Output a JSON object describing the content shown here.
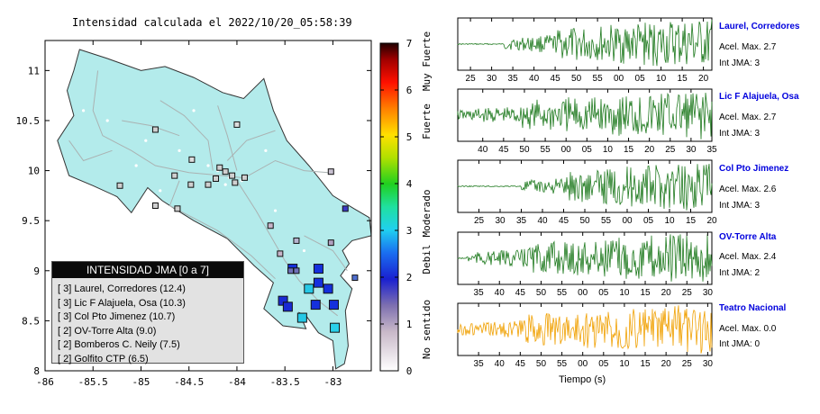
{
  "map": {
    "title": "Intensidad calculada el 2022/10/20_05:58:39",
    "x_ticks": [
      "-86",
      "-85.5",
      "-85",
      "-84.5",
      "-84",
      "-83.5",
      "-83"
    ],
    "y_ticks": [
      "11",
      "10.5",
      "10",
      "9.5",
      "9",
      "8.5",
      "8"
    ],
    "land_color": "#b3ebeb"
  },
  "colorbar": {
    "ticks": [
      "0",
      "1",
      "2",
      "3",
      "4",
      "5",
      "6",
      "7"
    ],
    "categories": [
      "No sentido",
      "Debil",
      "Moderado",
      "Fuerte",
      "Muy Fuerte"
    ]
  },
  "legend": {
    "title": "INTENSIDAD JMA [0 a 7]",
    "items": [
      {
        "jma": "[ 3]",
        "station": "Laurel, Corredores (12.4)"
      },
      {
        "jma": "[ 3]",
        "station": "Lic F Alajuela, Osa (10.3)"
      },
      {
        "jma": "[ 3]",
        "station": "Col Pto Jimenez (10.7)"
      },
      {
        "jma": "[ 2]",
        "station": "OV-Torre Alta (9.0)"
      },
      {
        "jma": "[ 2]",
        "station": "Bomberos C. Neily (7.5)"
      },
      {
        "jma": "[ 2]",
        "station": "Golfito CTP (6.5)"
      }
    ]
  },
  "stations": [
    {
      "lon": -83.42,
      "lat": 9.02,
      "jma": 2.6,
      "color": "#1530dd",
      "size": 10
    },
    {
      "lon": -83.15,
      "lat": 9.02,
      "jma": 2.6,
      "color": "#1530dd",
      "size": 10
    },
    {
      "lon": -83.15,
      "lat": 8.88,
      "jma": 2.6,
      "color": "#1530dd",
      "size": 10
    },
    {
      "lon": -83.25,
      "lat": 8.82,
      "jma": 3.2,
      "color": "#26c8e6",
      "size": 10
    },
    {
      "lon": -83.05,
      "lat": 8.82,
      "jma": 2.6,
      "color": "#1530dd",
      "size": 10
    },
    {
      "lon": -83.52,
      "lat": 8.7,
      "jma": 2.5,
      "color": "#1a2ad4",
      "size": 10
    },
    {
      "lon": -83.47,
      "lat": 8.64,
      "jma": 2.5,
      "color": "#1a2ad4",
      "size": 10
    },
    {
      "lon": -83.18,
      "lat": 8.66,
      "jma": 2.6,
      "color": "#1530dd",
      "size": 10
    },
    {
      "lon": -82.99,
      "lat": 8.66,
      "jma": 2.6,
      "color": "#1530dd",
      "size": 10
    },
    {
      "lon": -83.32,
      "lat": 8.53,
      "jma": 3.2,
      "color": "#26c8e6",
      "size": 10
    },
    {
      "lon": -82.98,
      "lat": 8.43,
      "jma": 3.0,
      "color": "#29d0ea",
      "size": 10
    },
    {
      "lon": -83.44,
      "lat": 9.0,
      "jma": 1.6,
      "color": "#7070b8",
      "size": 6
    },
    {
      "lon": -83.38,
      "lat": 9.0,
      "jma": 1.6,
      "color": "#7070b8",
      "size": 6
    },
    {
      "lon": -82.77,
      "lat": 8.93,
      "jma": 1.8,
      "color": "#4f6fd0",
      "size": 6
    },
    {
      "lon": -82.87,
      "lat": 9.62,
      "jma": 1.8,
      "color": "#3a3ac4",
      "size": 6
    },
    {
      "lon": -83.65,
      "lat": 9.45,
      "jma": 0.9,
      "color": "#c7b4c8",
      "size": 6
    },
    {
      "lon": -83.55,
      "lat": 9.17,
      "jma": 0.9,
      "color": "#c7b4c8",
      "size": 6
    },
    {
      "lon": -83.02,
      "lat": 9.28,
      "jma": 1.1,
      "color": "#b0a0c0",
      "size": 6
    },
    {
      "lon": -83.38,
      "lat": 9.3,
      "jma": 0.9,
      "color": "#b7b4cf",
      "size": 6
    },
    {
      "lon": -84.0,
      "lat": 10.46,
      "jma": 0.2,
      "color": "#dddddd",
      "size": 6
    },
    {
      "lon": -84.47,
      "lat": 10.11,
      "jma": 0.2,
      "color": "#dddddd",
      "size": 6
    },
    {
      "lon": -84.18,
      "lat": 10.03,
      "jma": 0.3,
      "color": "#d0d0d0",
      "size": 6
    },
    {
      "lon": -84.12,
      "lat": 9.99,
      "jma": 0.3,
      "color": "#d0d0d0",
      "size": 6
    },
    {
      "lon": -84.05,
      "lat": 9.95,
      "jma": 0.3,
      "color": "#d0d0d0",
      "size": 6
    },
    {
      "lon": -83.92,
      "lat": 9.93,
      "jma": 0.3,
      "color": "#d0d0d0",
      "size": 6
    },
    {
      "lon": -84.22,
      "lat": 9.92,
      "jma": 0.3,
      "color": "#d0d0d0",
      "size": 6
    },
    {
      "lon": -84.02,
      "lat": 9.88,
      "jma": 0.3,
      "color": "#d0d0d0",
      "size": 6
    },
    {
      "lon": -84.62,
      "lat": 9.62,
      "jma": 0.3,
      "color": "#d0d0d0",
      "size": 6
    },
    {
      "lon": -85.22,
      "lat": 9.85,
      "jma": 0.3,
      "color": "#d0d0d0",
      "size": 6
    },
    {
      "lon": -84.65,
      "lat": 9.95,
      "jma": 0.3,
      "color": "#d0d0d0",
      "size": 6
    },
    {
      "lon": -83.02,
      "lat": 9.99,
      "jma": 0.6,
      "color": "#c8c0d0",
      "size": 6
    },
    {
      "lon": -84.48,
      "lat": 9.86,
      "jma": 0.3,
      "color": "#d0d0d0",
      "size": 6
    },
    {
      "lon": -84.3,
      "lat": 9.86,
      "jma": 0.3,
      "color": "#d0d0d0",
      "size": 6
    },
    {
      "lon": -84.85,
      "lat": 9.65,
      "jma": 0.3,
      "color": "#d0d0d0",
      "size": 6
    },
    {
      "lon": -84.85,
      "lat": 10.41,
      "jma": 0.3,
      "color": "#d0d0d0",
      "size": 6
    }
  ],
  "waveforms": {
    "xlabel": "Tiempo (s)",
    "panels": [
      {
        "station": "Laurel, Corredores",
        "accel": "Acel. Max. 2.7",
        "jma": "Int JMA: 3",
        "color": "#1f7a1f",
        "ticks": [
          "25",
          "30",
          "35",
          "40",
          "45",
          "50",
          "55",
          "00",
          "05",
          "10",
          "15",
          "20"
        ],
        "first_tick_sec": 25,
        "start_sec": 22,
        "end_sec": 82,
        "onset_sec": 33
      },
      {
        "station": "Lic F Alajuela, Osa",
        "accel": "Acel. Max. 2.7",
        "jma": "Int JMA: 3",
        "color": "#1f7a1f",
        "ticks": [
          "40",
          "45",
          "50",
          "55",
          "00",
          "05",
          "10",
          "15",
          "20",
          "25",
          "30",
          "35"
        ],
        "first_tick_sec": 40,
        "start_sec": 34,
        "end_sec": 95,
        "onset_sec": 34
      },
      {
        "station": "Col Pto Jimenez",
        "accel": "Acel. Max. 2.6",
        "jma": "Int JMA: 3",
        "color": "#1f7a1f",
        "ticks": [
          "25",
          "30",
          "35",
          "40",
          "45",
          "50",
          "55",
          "00",
          "05",
          "10",
          "15",
          "20"
        ],
        "first_tick_sec": 25,
        "start_sec": 20,
        "end_sec": 80,
        "onset_sec": 35
      },
      {
        "station": "OV-Torre Alta",
        "accel": "Acel. Max. 2.4",
        "jma": "Int JMA: 2",
        "color": "#1f7a1f",
        "ticks": [
          "35",
          "40",
          "45",
          "50",
          "55",
          "00",
          "05",
          "10",
          "15",
          "20",
          "25",
          "30"
        ],
        "first_tick_sec": 35,
        "start_sec": 30,
        "end_sec": 91,
        "onset_sec": 32
      },
      {
        "station": "Teatro Nacional",
        "accel": "Acel. Max. 0.0",
        "jma": "Int JMA: 0",
        "color": "#f0a000",
        "ticks": [
          "35",
          "40",
          "45",
          "50",
          "55",
          "00",
          "05",
          "10",
          "15",
          "20",
          "25",
          "30"
        ],
        "first_tick_sec": 35,
        "start_sec": 30,
        "end_sec": 91,
        "onset_sec": 30
      }
    ]
  }
}
